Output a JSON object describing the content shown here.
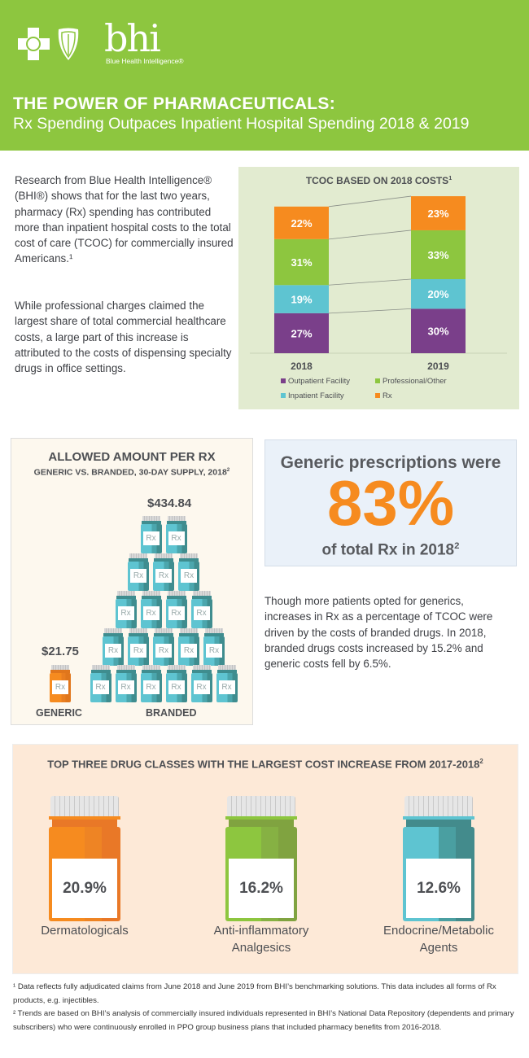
{
  "header": {
    "logo_text": "bhi",
    "logo_subtext": "Blue Health Intelligence®",
    "title": "THE POWER OF PHARMACEUTICALS:",
    "subtitle": "Rx Spending Outpaces Inpatient Hospital Spending 2018 & 2019"
  },
  "intro": {
    "p1": "Research from Blue Health Intelligence® (BHI®) shows that for the last two years, pharmacy (Rx) spending has contributed more than inpatient hospital costs to the total cost of care (TCOC) for commercially insured Americans.¹",
    "p2": "While professional charges claimed the largest share of total commercial healthcare costs, a large part of this increase is attributed to the costs of dispensing specialty drugs in office settings."
  },
  "chart_data": {
    "type": "bar",
    "stacked": true,
    "title": "TCOC BASED ON 2018 COSTS",
    "title_sup": "1",
    "categories": [
      "2018",
      "2019"
    ],
    "series": [
      {
        "name": "Outpatient Facility",
        "color": "#7a3f8a",
        "values": [
          27,
          30
        ]
      },
      {
        "name": "Inpatient Facility",
        "color": "#5ec4d1",
        "values": [
          19,
          20
        ]
      },
      {
        "name": "Professional/Other",
        "color": "#8dc63f",
        "values": [
          31,
          33
        ]
      },
      {
        "name": "Rx",
        "color": "#f68b1f",
        "values": [
          22,
          23
        ]
      }
    ],
    "unit": "%",
    "legend": "bottom"
  },
  "allowed": {
    "title": "ALLOWED AMOUNT PER RX",
    "subtitle": "GENERIC VS. BRANDED, 30-DAY SUPPLY, 2018",
    "sup": "2",
    "generic_amount": "$21.75",
    "branded_amount": "$434.84",
    "generic_label": "GENERIC",
    "branded_label": "BRANDED",
    "rx_label": "Rx",
    "branded_rows": [
      2,
      3,
      4,
      5,
      6
    ]
  },
  "generic_stat": {
    "line1": "Generic prescriptions were",
    "value": "83%",
    "line2": "of total Rx in 2018",
    "sup": "2"
  },
  "generic_para": "Though more patients opted for generics, increases in Rx as a percentage of TCOC were driven by the costs of branded drugs. In 2018, branded drugs costs increased by 15.2% and generic costs fell by 6.5%.",
  "drugs": {
    "title": "TOP THREE DRUG CLASSES WITH THE LARGEST COST INCREASE FROM 2017-2018",
    "sup": "2",
    "items": [
      {
        "value": "20.9%",
        "name1": "Dermatologicals",
        "name2": ""
      },
      {
        "value": "16.2%",
        "name1": "Anti-inflammatory",
        "name2": "Analgesics"
      },
      {
        "value": "12.6%",
        "name1": "Endocrine/Metabolic",
        "name2": "Agents"
      }
    ]
  },
  "footnotes": {
    "f1": "¹ Data reflects fully adjudicated claims from June 2018 and June 2019 from BHI’s benchmarking solutions. This data includes all forms of Rx products, e.g. injectibles.",
    "f2": "² Trends are based on BHI’s analysis of commercially insured individuals represented in BHI’s National Data Repository (dependents and primary subscribers) who were continuously enrolled in PPO group business plans that included pharmacy benefits from 2016-2018."
  }
}
